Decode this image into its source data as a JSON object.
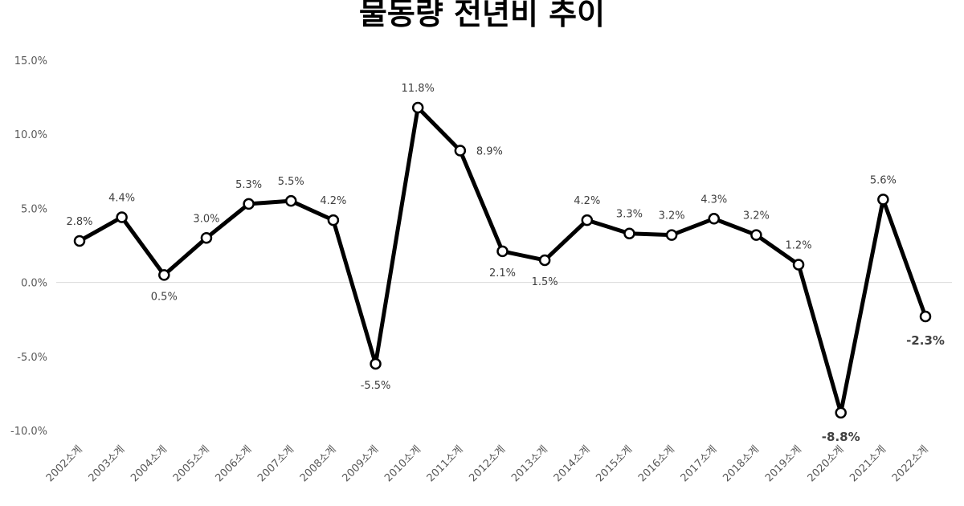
{
  "chart_data": {
    "type": "line",
    "title": "물동량 전년비 추이",
    "xlabel": "",
    "ylabel": "",
    "ylim": [
      -10,
      15
    ],
    "y_ticks": [
      "15.0%",
      "10.0%",
      "5.0%",
      "0.0%",
      "-5.0%",
      "-10.0%"
    ],
    "y_tick_values": [
      15,
      10,
      5,
      0,
      -5,
      -10
    ],
    "categories": [
      "2002소계",
      "2003소계",
      "2004소계",
      "2005소계",
      "2006소계",
      "2007소계",
      "2008소계",
      "2009소계",
      "2010소계",
      "2011소계",
      "2012소계",
      "2013소계",
      "2014소계",
      "2015소계",
      "2016소계",
      "2017소계",
      "2018소계",
      "2019소계",
      "2020소계",
      "2021소계",
      "2022소계"
    ],
    "series": [
      {
        "values": [
          2.8,
          4.4,
          0.5,
          3.0,
          5.3,
          5.5,
          4.2,
          -5.5,
          11.8,
          8.9,
          2.1,
          1.5,
          4.2,
          3.3,
          3.2,
          4.3,
          3.2,
          1.2,
          -8.8,
          5.6,
          -2.3
        ],
        "labels": [
          "2.8%",
          "4.4%",
          "0.5%",
          "3.0%",
          "5.3%",
          "5.5%",
          "4.2%",
          "-5.5%",
          "11.8%",
          "8.9%",
          "2.1%",
          "1.5%",
          "4.2%",
          "3.3%",
          "3.2%",
          "4.3%",
          "3.2%",
          "1.2%",
          "-8.8%",
          "5.6%",
          "-2.3%"
        ],
        "label_position": [
          "above",
          "above",
          "below",
          "above",
          "above",
          "above",
          "above",
          "below",
          "above",
          "right",
          "below",
          "below",
          "above",
          "above",
          "above",
          "above",
          "above",
          "above",
          "below",
          "above",
          "below"
        ],
        "highlight_labels": [
          18,
          20
        ]
      }
    ],
    "grid": false,
    "zero_line": true,
    "colors": {
      "line": "#000000",
      "marker_fill": "#ffffff",
      "axis_text": "#595959",
      "highlight": "#2E75B6",
      "zero_line": "#d9d9d9"
    }
  }
}
